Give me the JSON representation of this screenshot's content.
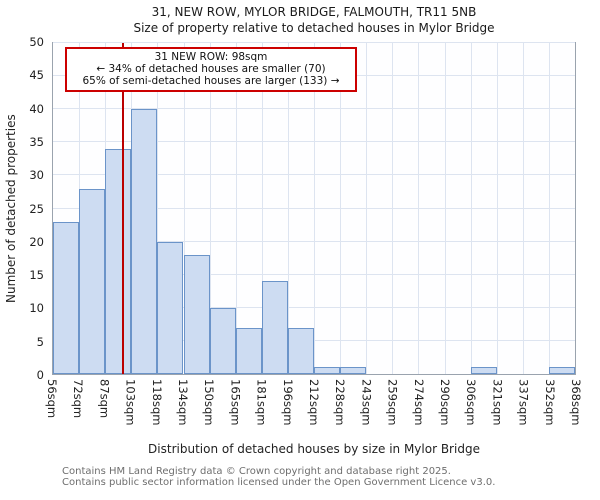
{
  "chart_data": {
    "type": "bar",
    "title": "31, NEW ROW, MYLOR BRIDGE, FALMOUTH, TR11 5NB",
    "subtitle": "Size of property relative to detached houses in Mylor Bridge",
    "xlabel": "Distribution of detached houses by size in Mylor Bridge",
    "ylabel": "Number of detached properties",
    "categories": [
      "56sqm",
      "72sqm",
      "87sqm",
      "103sqm",
      "118sqm",
      "134sqm",
      "150sqm",
      "165sqm",
      "181sqm",
      "196sqm",
      "212sqm",
      "228sqm",
      "243sqm",
      "259sqm",
      "274sqm",
      "290sqm",
      "306sqm",
      "321sqm",
      "337sqm",
      "352sqm",
      "368sqm"
    ],
    "values": [
      23,
      28,
      34,
      40,
      20,
      18,
      10,
      7,
      14,
      7,
      1,
      1,
      0,
      0,
      0,
      0,
      1,
      0,
      0,
      1
    ],
    "ylim": [
      0,
      50
    ],
    "ytick_step": 5,
    "grid": "on",
    "bin_start": 56,
    "bin_end": 368,
    "marker_value_sqm": 98,
    "annotation": {
      "line1": "31 NEW ROW: 98sqm",
      "line2": "← 34% of detached houses are smaller (70)",
      "line3": "65% of semi-detached houses are larger (133) →"
    },
    "colors": {
      "bar_fill": "#cddcf2",
      "bar_border": "#6b94c9",
      "marker_line": "#bb0000",
      "annotation_border": "#cc0000",
      "grid": "#dde4f0"
    }
  },
  "footer": {
    "line1": "Contains HM Land Registry data © Crown copyright and database right 2025.",
    "line2": "Contains public sector information licensed under the Open Government Licence v3.0."
  }
}
